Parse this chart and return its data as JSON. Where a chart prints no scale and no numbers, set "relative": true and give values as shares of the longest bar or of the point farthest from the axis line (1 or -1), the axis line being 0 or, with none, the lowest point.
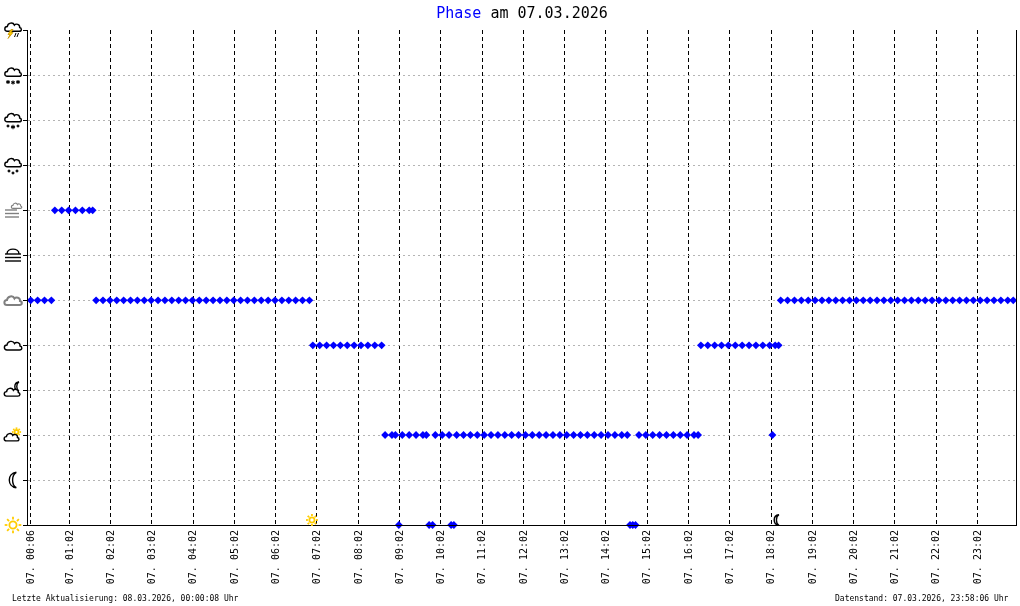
{
  "chart_data": {
    "type": "scatter",
    "title": "Phase am 07.03.2026",
    "annotations": [
      "Letzte Aktualisierung: 08.03.2026, 00:00:08 Uhr",
      "Datenstand: 07.03.2026, 23:58:06 Uhr"
    ],
    "relative": true,
    "color": "#0000ff",
    "marker": "diamond",
    "grid": true,
    "xlim": [
      "2026-03-07T00:02",
      "2026-03-07T23:58"
    ],
    "xticks": [
      {
        "value": "2026-03-07T00:06",
        "label": "07. 00:06"
      },
      {
        "value": "2026-03-07T01:02",
        "label": "07. 01:02"
      },
      {
        "value": "2026-03-07T02:02",
        "label": "07. 02:02"
      },
      {
        "value": "2026-03-07T03:02",
        "label": "07. 03:02"
      },
      {
        "value": "2026-03-07T04:02",
        "label": "07. 04:02"
      },
      {
        "value": "2026-03-07T05:02",
        "label": "07. 05:02"
      },
      {
        "value": "2026-03-07T06:02",
        "label": "07. 06:02"
      },
      {
        "value": "2026-03-07T07:02",
        "label": "07. 07:02"
      },
      {
        "value": "2026-03-07T08:02",
        "label": "07. 08:02"
      },
      {
        "value": "2026-03-07T09:02",
        "label": "07. 09:02"
      },
      {
        "value": "2026-03-07T10:02",
        "label": "07. 10:02"
      },
      {
        "value": "2026-03-07T11:02",
        "label": "07. 11:02"
      },
      {
        "value": "2026-03-07T12:02",
        "label": "07. 12:02"
      },
      {
        "value": "2026-03-07T13:02",
        "label": "07. 13:02"
      },
      {
        "value": "2026-03-07T14:02",
        "label": "07. 14:02"
      },
      {
        "value": "2026-03-07T15:02",
        "label": "07. 15:02"
      },
      {
        "value": "2026-03-07T16:02",
        "label": "07. 16:02"
      },
      {
        "value": "2026-03-07T17:02",
        "label": "07. 17:02"
      },
      {
        "value": "2026-03-07T18:02",
        "label": "07. 18:02"
      },
      {
        "value": "2026-03-07T19:02",
        "label": "07. 19:02"
      },
      {
        "value": "2026-03-07T20:02",
        "label": "07. 20:02"
      },
      {
        "value": "2026-03-07T21:02",
        "label": "07. 21:02"
      },
      {
        "value": "2026-03-07T22:02",
        "label": "07. 22:02"
      },
      {
        "value": "2026-03-07T23:02",
        "label": "07. 23:02"
      }
    ],
    "x": [
      "2026-03-07T00:06",
      "2026-03-07T00:16",
      "2026-03-07T00:26",
      "2026-03-07T00:36",
      "2026-03-07T00:41",
      "2026-03-07T00:51",
      "2026-03-07T01:01",
      "2026-03-07T01:11",
      "2026-03-07T01:21",
      "2026-03-07T01:31",
      "2026-03-07T01:36",
      "2026-03-07T01:41",
      "2026-03-07T01:51",
      "2026-03-07T02:01",
      "2026-03-07T02:11",
      "2026-03-07T02:21",
      "2026-03-07T02:31",
      "2026-03-07T02:41",
      "2026-03-07T02:51",
      "2026-03-07T03:01",
      "2026-03-07T03:11",
      "2026-03-07T03:21",
      "2026-03-07T03:31",
      "2026-03-07T03:41",
      "2026-03-07T03:51",
      "2026-03-07T04:01",
      "2026-03-07T04:11",
      "2026-03-07T04:21",
      "2026-03-07T04:31",
      "2026-03-07T04:41",
      "2026-03-07T04:51",
      "2026-03-07T05:01",
      "2026-03-07T05:11",
      "2026-03-07T05:21",
      "2026-03-07T05:31",
      "2026-03-07T05:41",
      "2026-03-07T05:51",
      "2026-03-07T06:01",
      "2026-03-07T06:11",
      "2026-03-07T06:21",
      "2026-03-07T06:31",
      "2026-03-07T06:41",
      "2026-03-07T06:51",
      "2026-03-07T06:56",
      "2026-03-07T07:06",
      "2026-03-07T07:16",
      "2026-03-07T07:26",
      "2026-03-07T07:36",
      "2026-03-07T07:46",
      "2026-03-07T07:56",
      "2026-03-07T08:06",
      "2026-03-07T08:16",
      "2026-03-07T08:26",
      "2026-03-07T08:36",
      "2026-03-07T08:41",
      "2026-03-07T08:51",
      "2026-03-07T08:56",
      "2026-03-07T09:01",
      "2026-03-07T09:06",
      "2026-03-07T09:16",
      "2026-03-07T09:26",
      "2026-03-07T09:36",
      "2026-03-07T09:41",
      "2026-03-07T09:45",
      "2026-03-07T09:50",
      "2026-03-07T09:54",
      "2026-03-07T10:04",
      "2026-03-07T10:14",
      "2026-03-07T10:17",
      "2026-03-07T10:21",
      "2026-03-07T10:25",
      "2026-03-07T10:35",
      "2026-03-07T10:45",
      "2026-03-07T10:55",
      "2026-03-07T11:05",
      "2026-03-07T11:15",
      "2026-03-07T11:25",
      "2026-03-07T11:35",
      "2026-03-07T11:45",
      "2026-03-07T11:55",
      "2026-03-07T12:05",
      "2026-03-07T12:15",
      "2026-03-07T12:25",
      "2026-03-07T12:35",
      "2026-03-07T12:45",
      "2026-03-07T12:55",
      "2026-03-07T13:05",
      "2026-03-07T13:15",
      "2026-03-07T13:25",
      "2026-03-07T13:35",
      "2026-03-07T13:45",
      "2026-03-07T13:55",
      "2026-03-07T14:05",
      "2026-03-07T14:15",
      "2026-03-07T14:25",
      "2026-03-07T14:33",
      "2026-03-07T14:37",
      "2026-03-07T14:41",
      "2026-03-07T14:45",
      "2026-03-07T14:50",
      "2026-03-07T15:00",
      "2026-03-07T15:10",
      "2026-03-07T15:20",
      "2026-03-07T15:30",
      "2026-03-07T15:40",
      "2026-03-07T15:50",
      "2026-03-07T16:00",
      "2026-03-07T16:10",
      "2026-03-07T16:16",
      "2026-03-07T16:20",
      "2026-03-07T16:30",
      "2026-03-07T16:40",
      "2026-03-07T16:50",
      "2026-03-07T17:00",
      "2026-03-07T17:10",
      "2026-03-07T17:20",
      "2026-03-07T17:30",
      "2026-03-07T17:40",
      "2026-03-07T17:50",
      "2026-03-07T18:00",
      "2026-03-07T18:04",
      "2026-03-07T18:08",
      "2026-03-07T18:13",
      "2026-03-07T18:16",
      "2026-03-07T18:26",
      "2026-03-07T18:36",
      "2026-03-07T18:46",
      "2026-03-07T18:56",
      "2026-03-07T19:06",
      "2026-03-07T19:16",
      "2026-03-07T19:26",
      "2026-03-07T19:36",
      "2026-03-07T19:46",
      "2026-03-07T19:56",
      "2026-03-07T20:06",
      "2026-03-07T20:16",
      "2026-03-07T20:26",
      "2026-03-07T20:36",
      "2026-03-07T20:46",
      "2026-03-07T20:56",
      "2026-03-07T21:06",
      "2026-03-07T21:16",
      "2026-03-07T21:26",
      "2026-03-07T21:36",
      "2026-03-07T21:46",
      "2026-03-07T21:56",
      "2026-03-07T22:06",
      "2026-03-07T22:16",
      "2026-03-07T22:26",
      "2026-03-07T22:36",
      "2026-03-07T22:46",
      "2026-03-07T22:56",
      "2026-03-07T23:06",
      "2026-03-07T23:16",
      "2026-03-07T23:26",
      "2026-03-07T23:36",
      "2026-03-07T23:46",
      "2026-03-07T23:54"
    ],
    "values": [
      0.714,
      0.714,
      0.714,
      0.714,
      1,
      1,
      1,
      1,
      1,
      1,
      1,
      0.714,
      0.714,
      0.714,
      0.714,
      0.714,
      0.714,
      0.714,
      0.714,
      0.714,
      0.714,
      0.714,
      0.714,
      0.714,
      0.714,
      0.714,
      0.714,
      0.714,
      0.714,
      0.714,
      0.714,
      0.714,
      0.714,
      0.714,
      0.714,
      0.714,
      0.714,
      0.714,
      0.714,
      0.714,
      0.714,
      0.714,
      0.714,
      0.571,
      0.571,
      0.571,
      0.571,
      0.571,
      0.571,
      0.571,
      0.571,
      0.571,
      0.571,
      0.571,
      0.286,
      0.286,
      0.286,
      0,
      0.286,
      0.286,
      0.286,
      0.286,
      0.286,
      0,
      0,
      0.286,
      0.286,
      0.286,
      0,
      0,
      0.286,
      0.286,
      0.286,
      0.286,
      0.286,
      0.286,
      0.286,
      0.286,
      0.286,
      0.286,
      0.286,
      0.286,
      0.286,
      0.286,
      0.286,
      0.286,
      0.286,
      0.286,
      0.286,
      0.286,
      0.286,
      0.286,
      0.286,
      0.286,
      0.286,
      0.286,
      0,
      0,
      0,
      0.286,
      0.286,
      0.286,
      0.286,
      0.286,
      0.286,
      0.286,
      0.286,
      0.286,
      0.286,
      0.571,
      0.571,
      0.571,
      0.571,
      0.571,
      0.571,
      0.571,
      0.571,
      0.571,
      0.571,
      0.571,
      0.286,
      0.571,
      0.571,
      0.714,
      0.714,
      0.714,
      0.714,
      0.714,
      0.714,
      0.714,
      0.714,
      0.714,
      0.714,
      0.714,
      0.714,
      0.714,
      0.714,
      0.714,
      0.714,
      0.714,
      0.714,
      0.714,
      0.714,
      0.714,
      0.714,
      0.714,
      0.714,
      0.714,
      0.714,
      0.714,
      0.714,
      0.714,
      0.714,
      0.714,
      0.714,
      0.714,
      0.714,
      0.714
    ]
  }
}
